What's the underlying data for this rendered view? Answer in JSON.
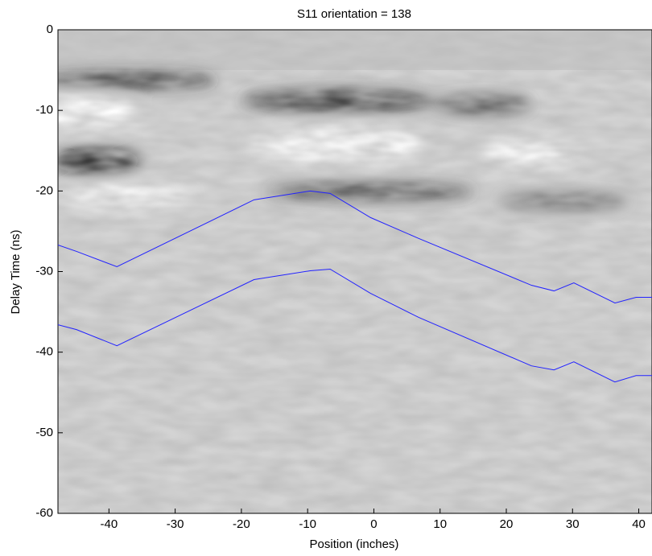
{
  "chart_data": {
    "type": "line",
    "title": "S11  orientation = 138",
    "x_label": "Position (inches)",
    "y_label": "Delay Time (ns)",
    "xlim": [
      -47.7,
      42
    ],
    "ylim": [
      -60,
      0
    ],
    "xticks": [
      -40,
      -30,
      -20,
      -10,
      0,
      10,
      20,
      30,
      40
    ],
    "yticks": [
      0,
      -10,
      -20,
      -30,
      -40,
      -50,
      -60
    ],
    "series": [
      {
        "color": "#2222ff",
        "x": [
          -47.7,
          -44.9,
          -38.8,
          -18.1,
          -9.6,
          -6.6,
          -0.5,
          6.8,
          23.8,
          27.2,
          30.2,
          36.4,
          39.6,
          42
        ],
        "values": [
          -26.7,
          -27.5,
          -29.4,
          -21.1,
          -20.0,
          -20.3,
          -23.3,
          -25.9,
          -31.7,
          -32.4,
          -31.4,
          -33.9,
          -33.2,
          -33.2
        ]
      },
      {
        "color": "#2222ff",
        "x": [
          -47.7,
          -44.9,
          -38.8,
          -18.1,
          -9.6,
          -6.6,
          -0.5,
          6.8,
          23.8,
          27.2,
          30.2,
          36.4,
          39.6,
          42
        ],
        "values": [
          -36.6,
          -37.2,
          -39.2,
          -31.0,
          -29.9,
          -29.7,
          -32.7,
          -35.7,
          -41.7,
          -42.2,
          -41.2,
          -43.7,
          -42.9,
          -42.9
        ]
      }
    ]
  }
}
